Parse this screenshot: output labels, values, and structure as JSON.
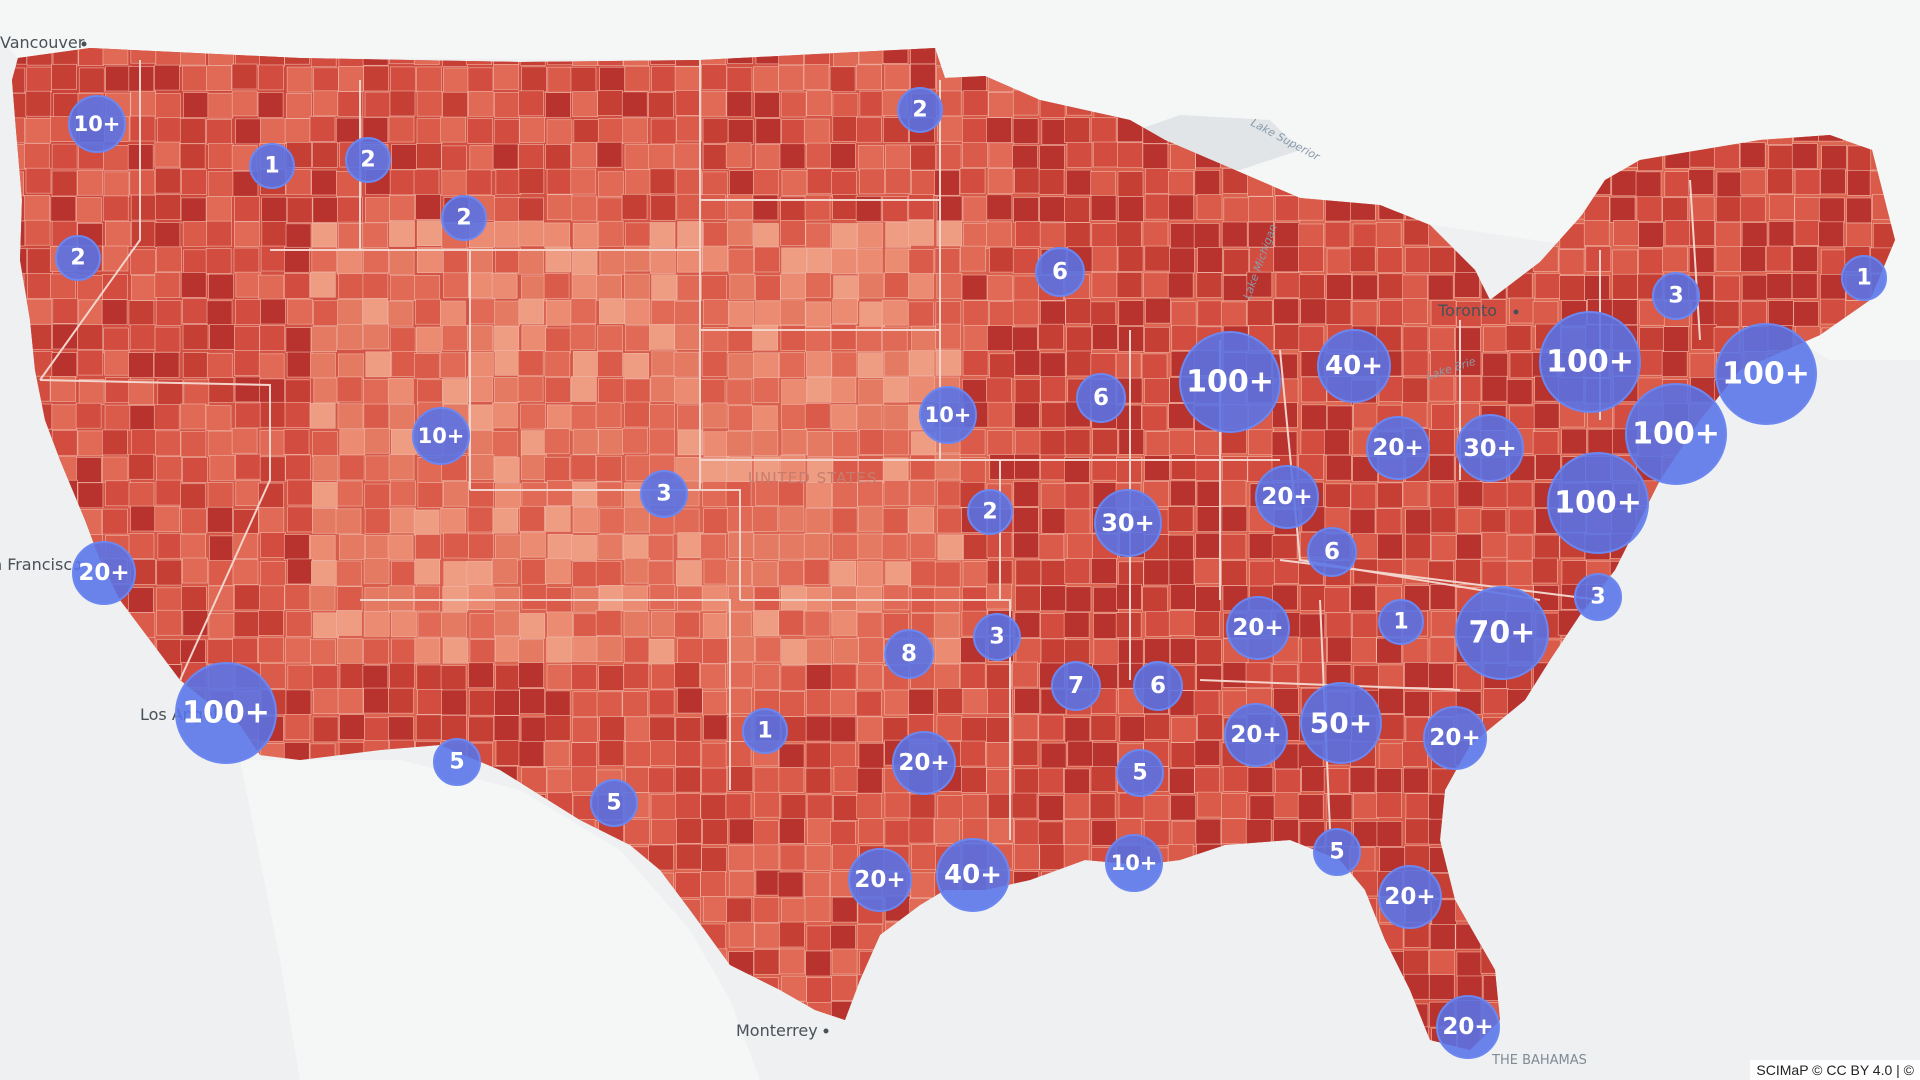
{
  "map": {
    "country_label": "UNITED STATES",
    "cities": {
      "vancouver": "Vancouver",
      "san_francisco": "San Francisco",
      "los_angeles": "Los Angeles",
      "toronto": "Toronto",
      "monterrey": "Monterrey",
      "bahamas": "THE BAHAMAS"
    },
    "water": {
      "lake_superior": "Lake Superior",
      "lake_michigan": "Lake Michigan",
      "lake_erie": "Lake Erie"
    },
    "colors": {
      "land_base": "#dd5f4c",
      "ocean": "#eef0f1",
      "cluster": "#5673e8"
    },
    "clusters": [
      {
        "id": "seattle",
        "label": "10+"
      },
      {
        "id": "spokane",
        "label": "1"
      },
      {
        "id": "missoula",
        "label": "2"
      },
      {
        "id": "portland",
        "label": "2"
      },
      {
        "id": "bozeman",
        "label": "2"
      },
      {
        "id": "fargo",
        "label": "2"
      },
      {
        "id": "minneapolis",
        "label": "6"
      },
      {
        "id": "chicago",
        "label": "100+"
      },
      {
        "id": "detroit",
        "label": "40+"
      },
      {
        "id": "albany",
        "label": "3"
      },
      {
        "id": "maine",
        "label": "1"
      },
      {
        "id": "nyc-upstate",
        "label": "100+"
      },
      {
        "id": "boston",
        "label": "100+"
      },
      {
        "id": "new-york",
        "label": "100+"
      },
      {
        "id": "iowa",
        "label": "6"
      },
      {
        "id": "omaha",
        "label": "10+"
      },
      {
        "id": "salt-lake",
        "label": "10+"
      },
      {
        "id": "denver",
        "label": "3"
      },
      {
        "id": "cleveland",
        "label": "20+"
      },
      {
        "id": "pittsburgh",
        "label": "30+"
      },
      {
        "id": "philadelphia",
        "label": "100+"
      },
      {
        "id": "indianapolis",
        "label": "20+"
      },
      {
        "id": "st-louis",
        "label": "30+"
      },
      {
        "id": "kansas-city",
        "label": "2"
      },
      {
        "id": "louisville",
        "label": "6"
      },
      {
        "id": "bay-area",
        "label": "20+"
      },
      {
        "id": "norfolk",
        "label": "3"
      },
      {
        "id": "raleigh",
        "label": "70+"
      },
      {
        "id": "roanoke",
        "label": "1"
      },
      {
        "id": "nashville",
        "label": "20+"
      },
      {
        "id": "tulsa",
        "label": "3"
      },
      {
        "id": "oklahoma-city",
        "label": "8"
      },
      {
        "id": "little-rock",
        "label": "7"
      },
      {
        "id": "memphis",
        "label": "6"
      },
      {
        "id": "los-angeles",
        "label": "100+"
      },
      {
        "id": "albuquerque",
        "label": "1"
      },
      {
        "id": "phoenix",
        "label": "5"
      },
      {
        "id": "el-paso",
        "label": "5"
      },
      {
        "id": "dallas",
        "label": "20+"
      },
      {
        "id": "jackson",
        "label": "5"
      },
      {
        "id": "birmingham",
        "label": "20+"
      },
      {
        "id": "atlanta",
        "label": "50+"
      },
      {
        "id": "columbia",
        "label": "20+"
      },
      {
        "id": "austin",
        "label": "20+"
      },
      {
        "id": "houston",
        "label": "40+"
      },
      {
        "id": "new-orleans",
        "label": "10+"
      },
      {
        "id": "tallahassee",
        "label": "5"
      },
      {
        "id": "orlando",
        "label": "20+"
      },
      {
        "id": "miami",
        "label": "20+"
      }
    ],
    "attribution": "SCIMaP © CC BY 4.0 | ©"
  }
}
